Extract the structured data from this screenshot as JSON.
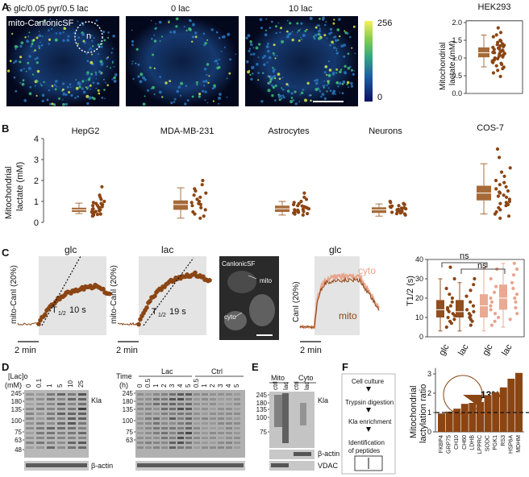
{
  "colors": {
    "brown": "#8B4513",
    "salmon": "#E8A48C",
    "box_brown": "#A0622D",
    "bar_brown": "#8B4513"
  },
  "panel_a": {
    "label": "A",
    "image_labels": [
      "5 glc/0.05 pyr/0.5 lac",
      "0 lac",
      "10 lac"
    ],
    "sensor": "mito-CanlonicSF",
    "nucleus": "n",
    "colorbar_max": "256",
    "colorbar_min": "0",
    "cell_line": "HEK293"
  },
  "panel_b": {
    "label": "B"
  },
  "panel_c": {
    "label": "C",
    "glc": "glc",
    "lac": "lac",
    "ylab_mito": "mito-CanI (20%)",
    "ylab_canl": "CanI (20%)",
    "t_half_glc": "10 s",
    "t_half_lac": "19 s",
    "t_half_sym": "T",
    "t_half_sub": "1/2",
    "scalebar": "2 min",
    "img_title": "CanlonicSF",
    "img_mito": "mito",
    "img_cyto": "cyto",
    "trace_cyto": "cyto",
    "trace_mito": "mito",
    "ns": "ns",
    "t12_label": "T1/2 (s)"
  },
  "panel_d": {
    "label": "D",
    "lac_conc_label": "[Lac]o",
    "mm": "(mM)",
    "concs": [
      "0",
      "0.1",
      "1",
      "5",
      "10",
      "25"
    ],
    "time_label": "Time",
    "h": "(h)",
    "lac": "Lac",
    "ctrl": "Ctrl",
    "times": [
      "0",
      "0.5",
      "1",
      "2",
      "3",
      "4",
      "5",
      "0.5",
      "1",
      "2",
      "3",
      "4",
      "5"
    ],
    "mw": [
      "245",
      "180",
      "135",
      "100",
      "75",
      "63",
      "48"
    ],
    "mw2": [
      "245",
      "180",
      "135",
      "100",
      "75",
      "63"
    ],
    "kla": "Kla",
    "bactin": "β-actin"
  },
  "panel_e": {
    "label": "E",
    "mito": "Mito",
    "cyto": "Cyto",
    "lanes": [
      "ctrl",
      "lac",
      "ctrl",
      "lac"
    ],
    "mw": [
      "245",
      "180",
      "135",
      "100",
      "75"
    ],
    "kla": "Kla",
    "bactin": "β-actin",
    "vdac": "VDAC"
  },
  "panel_f": {
    "label": "F",
    "steps": [
      "Cell culture",
      "Trypsin digestion",
      "Kla enrichment",
      "Identification",
      "of peptides"
    ],
    "pie_pct": "13%",
    "ylabel": [
      "Mitochondrial",
      "lactylation ratio"
    ]
  },
  "chart_data": [
    {
      "type": "box",
      "panel": "A",
      "title": "HEK293",
      "ylabel": "Mitochondrial lactate (mM)",
      "yticks": [
        0,
        0.5,
        1.0,
        1.5,
        2.0
      ],
      "ylim": [
        0,
        2.0
      ],
      "box": {
        "min": 0.75,
        "q1": 1.02,
        "median": 1.15,
        "q3": 1.3,
        "max": 1.65
      },
      "points": [
        1.85,
        1.72,
        1.65,
        1.6,
        1.5,
        1.48,
        1.44,
        1.4,
        1.38,
        1.36,
        1.34,
        1.32,
        1.3,
        1.28,
        1.26,
        1.24,
        1.22,
        1.2,
        1.18,
        1.16,
        1.15,
        1.13,
        1.12,
        1.1,
        1.08,
        1.06,
        1.05,
        1.03,
        1.0,
        0.98,
        0.96,
        0.94,
        0.92,
        0.9,
        0.87,
        0.85,
        0.82,
        0.78,
        0.74,
        0.7,
        0.65,
        0.58,
        0.48
      ]
    },
    {
      "type": "box",
      "panel": "B",
      "ylabel": "Mitochondrial lactate (mM)",
      "yticks": [
        0,
        1,
        2,
        3,
        4
      ],
      "ylim": [
        0,
        4
      ],
      "series": [
        {
          "name": "HepG2",
          "box": {
            "min": 0.42,
            "q1": 0.5,
            "median": 0.6,
            "q3": 0.7,
            "max": 0.92
          },
          "points": [
            1.7,
            1.3,
            1.2,
            1.1,
            1.0,
            0.95,
            0.9,
            0.9,
            0.85,
            0.8,
            0.8,
            0.75,
            0.72,
            0.7,
            0.68,
            0.65,
            0.62,
            0.6,
            0.58,
            0.55,
            0.52,
            0.5,
            0.48,
            0.45,
            0.42,
            0.4,
            0.38,
            0.35,
            0.3
          ]
        },
        {
          "name": "MDA-MB-231",
          "box": {
            "min": 0.2,
            "q1": 0.6,
            "median": 0.85,
            "q3": 1.05,
            "max": 1.65
          },
          "points": [
            2.0,
            1.8,
            1.6,
            1.5,
            1.4,
            1.3,
            1.2,
            1.1,
            1.0,
            0.95,
            0.9,
            0.85,
            0.8,
            0.7,
            0.6,
            0.5,
            0.4,
            0.3,
            0.2
          ]
        },
        {
          "name": "Astrocytes",
          "box": {
            "min": 0.35,
            "q1": 0.5,
            "median": 0.65,
            "q3": 0.8,
            "max": 1.0
          },
          "points": [
            1.4,
            1.2,
            1.1,
            1.0,
            0.95,
            0.9,
            0.85,
            0.8,
            0.78,
            0.75,
            0.72,
            0.7,
            0.68,
            0.65,
            0.62,
            0.6,
            0.58,
            0.55,
            0.52,
            0.5,
            0.48,
            0.45,
            0.42,
            0.4,
            0.35
          ]
        },
        {
          "name": "Neurons",
          "box": {
            "min": 0.3,
            "q1": 0.45,
            "median": 0.6,
            "q3": 0.72,
            "max": 0.88
          },
          "points": [
            1.0,
            0.95,
            0.9,
            0.85,
            0.8,
            0.78,
            0.75,
            0.72,
            0.7,
            0.68,
            0.65,
            0.62,
            0.6,
            0.58,
            0.55,
            0.52,
            0.5,
            0.48,
            0.45,
            0.42,
            0.4,
            0.35
          ]
        },
        {
          "name": "COS-7",
          "box": {
            "min": 0.4,
            "q1": 1.05,
            "median": 1.4,
            "q3": 1.75,
            "max": 2.8
          },
          "points": [
            3.5,
            3.1,
            2.6,
            2.4,
            2.2,
            2.0,
            1.9,
            1.8,
            1.7,
            1.6,
            1.5,
            1.45,
            1.4,
            1.3,
            1.25,
            1.2,
            1.1,
            1.0,
            0.95,
            0.9,
            0.85,
            0.8,
            0.7,
            0.6,
            0.5,
            0.4,
            0.3,
            0.2
          ]
        }
      ]
    },
    {
      "type": "box",
      "panel": "C",
      "ylabel": "T1/2 (s)",
      "yticks": [
        0,
        10,
        20,
        30,
        40
      ],
      "ylim": [
        0,
        40
      ],
      "categories": [
        "glc",
        "lac",
        "glc",
        "lac"
      ],
      "series": [
        {
          "name": "mito",
          "box": {
            "min": 3,
            "q1": 10,
            "median": 14,
            "q3": 19,
            "max": 30
          },
          "points": [
            36,
            30,
            25,
            22,
            20,
            18,
            16,
            15,
            14,
            13,
            12,
            11,
            10,
            9,
            8,
            7,
            5
          ]
        },
        {
          "name": "mito",
          "box": {
            "min": 3,
            "q1": 10,
            "median": 13,
            "q3": 19,
            "max": 28
          },
          "points": [
            30,
            27,
            24,
            21,
            18,
            16,
            14,
            13,
            12,
            11,
            10,
            9,
            8,
            6
          ]
        },
        {
          "name": "cyto",
          "box": {
            "min": 3,
            "q1": 10,
            "median": 16,
            "q3": 22,
            "max": 36
          },
          "points": [
            35,
            30,
            26,
            23,
            20,
            18,
            16,
            14,
            12,
            10,
            8,
            6
          ]
        },
        {
          "name": "cyto",
          "box": {
            "min": 5,
            "q1": 14,
            "median": 20,
            "q3": 27,
            "max": 38
          },
          "points": [
            38,
            35,
            32,
            28,
            25,
            22,
            20,
            18,
            15,
            12,
            9
          ]
        }
      ]
    },
    {
      "type": "bar",
      "panel": "F",
      "categories": [
        "FKBP4",
        "GRP75",
        "CH10",
        "CH60",
        "LDHB",
        "LPPRC",
        "SODC",
        "PGK1",
        "RS3",
        "HSP6A",
        "MDHM"
      ],
      "values": [
        0.95,
        1.05,
        1.2,
        1.45,
        1.5,
        1.55,
        1.9,
        2.05,
        2.3,
        2.75,
        3.05
      ],
      "yticks": [
        0,
        1,
        2,
        3
      ],
      "ylim": [
        0,
        3.3
      ],
      "reference_line": 1.0,
      "ylabel": "Mitochondrial lactylation ratio"
    }
  ]
}
